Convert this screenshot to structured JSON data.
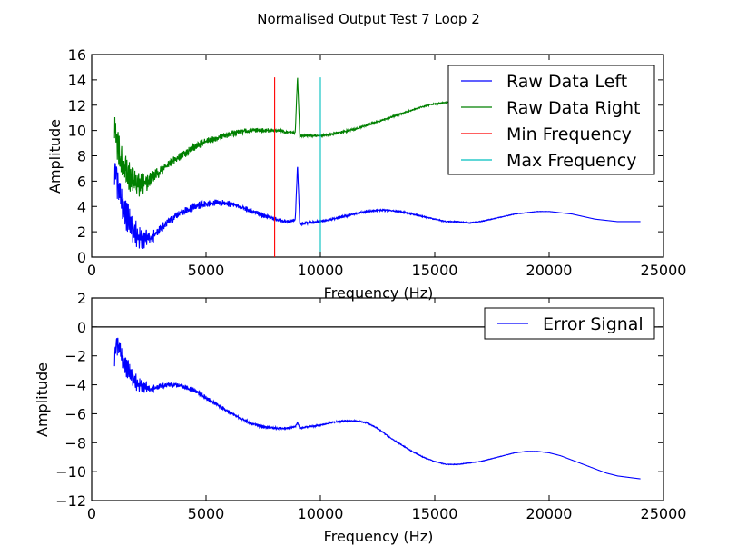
{
  "figure_title": "Normalised Output Test 7 Loop 2",
  "chart_data": [
    {
      "type": "line",
      "xlabel": "Frequency (Hz)",
      "ylabel": "Amplitude",
      "xlim": [
        0,
        25000
      ],
      "ylim": [
        0,
        16
      ],
      "xticks": [
        "0",
        "5000",
        "10000",
        "15000",
        "20000",
        "25000"
      ],
      "yticks": [
        "0",
        "2",
        "4",
        "6",
        "8",
        "10",
        "12",
        "14",
        "16"
      ],
      "legend_position": "top-right",
      "series": [
        {
          "name": "Raw Data Left",
          "color": "#0000ff",
          "style": "noisy",
          "x": [
            1000,
            1100,
            1200,
            1400,
            1600,
            1800,
            2000,
            2200,
            2600,
            3000,
            3500,
            4000,
            4500,
            5000,
            5500,
            6000,
            6500,
            7000,
            7500,
            8000,
            8500,
            8900,
            9000,
            9100,
            9500,
            10000,
            10500,
            11000,
            11500,
            12000,
            12500,
            13000,
            13500,
            14000,
            14500,
            15000,
            15500,
            16000,
            16500,
            17000,
            17500,
            18000,
            18500,
            19000,
            19500,
            20000,
            20500,
            21000,
            21500,
            22000,
            22500,
            23000,
            23500,
            24000
          ],
          "y": [
            7.0,
            6.5,
            5.0,
            3.8,
            3.0,
            2.2,
            1.6,
            1.3,
            1.6,
            2.2,
            3.0,
            3.6,
            4.0,
            4.2,
            4.3,
            4.2,
            4.0,
            3.6,
            3.3,
            3.0,
            2.8,
            2.9,
            7.3,
            2.6,
            2.7,
            2.8,
            3.0,
            3.2,
            3.4,
            3.6,
            3.7,
            3.7,
            3.6,
            3.4,
            3.2,
            3.0,
            2.8,
            2.8,
            2.7,
            2.8,
            3.0,
            3.2,
            3.4,
            3.5,
            3.6,
            3.6,
            3.5,
            3.4,
            3.2,
            3.0,
            2.9,
            2.8,
            2.8,
            2.8
          ]
        },
        {
          "name": "Raw Data Right",
          "color": "#008000",
          "style": "noisy",
          "x": [
            1000,
            1100,
            1200,
            1400,
            1600,
            1800,
            2000,
            2200,
            2600,
            3000,
            3500,
            4000,
            4500,
            5000,
            5500,
            6000,
            6500,
            7000,
            7500,
            8000,
            8500,
            8900,
            9000,
            9100,
            9500,
            10000,
            10500,
            11000,
            11500,
            12000,
            12500,
            13000,
            13500,
            14000,
            14500,
            15000,
            15500,
            16000
          ],
          "y": [
            10.5,
            9.5,
            8.5,
            7.3,
            6.5,
            6.0,
            5.8,
            5.8,
            6.2,
            6.8,
            7.5,
            8.1,
            8.7,
            9.1,
            9.4,
            9.7,
            9.9,
            10.0,
            10.0,
            10.0,
            9.9,
            9.8,
            14.3,
            9.6,
            9.6,
            9.6,
            9.7,
            9.9,
            10.1,
            10.4,
            10.7,
            11.0,
            11.3,
            11.6,
            11.9,
            12.1,
            12.2,
            12.3
          ]
        },
        {
          "name": "Min Frequency",
          "color": "#ff0000",
          "style": "vline",
          "x": [
            8000,
            8000
          ],
          "y": [
            0,
            14.2
          ]
        },
        {
          "name": "Max Frequency",
          "color": "#00bfbf",
          "style": "vline",
          "x": [
            10000,
            10000
          ],
          "y": [
            0,
            14.2
          ]
        }
      ]
    },
    {
      "type": "line",
      "xlabel": "Frequency (Hz)",
      "ylabel": "Amplitude",
      "xlim": [
        0,
        25000
      ],
      "ylim": [
        -12,
        2
      ],
      "xticks": [
        "0",
        "5000",
        "10000",
        "15000",
        "20000",
        "25000"
      ],
      "yticks": [
        "2",
        "0",
        "−2",
        "−4",
        "−6",
        "−8",
        "−10",
        "−12"
      ],
      "legend_position": "top-right",
      "reference_line_y": 0,
      "series": [
        {
          "name": "Error Signal",
          "color": "#0000ff",
          "style": "noisy",
          "x": [
            1000,
            1100,
            1200,
            1400,
            1600,
            1800,
            2000,
            2500,
            3000,
            3500,
            4000,
            4500,
            5000,
            5500,
            6000,
            6500,
            7000,
            7500,
            8000,
            8500,
            8900,
            9000,
            9100,
            9500,
            10000,
            10500,
            11000,
            11500,
            12000,
            12500,
            13000,
            13500,
            14000,
            14500,
            15000,
            15500,
            16000,
            16500,
            17000,
            17500,
            18000,
            18500,
            19000,
            19500,
            20000,
            20500,
            21000,
            21500,
            22000,
            22500,
            23000,
            23500,
            24000
          ],
          "y": [
            -2.0,
            -1.0,
            -1.5,
            -2.5,
            -3.0,
            -3.5,
            -4.0,
            -4.3,
            -4.1,
            -4.0,
            -4.1,
            -4.4,
            -4.9,
            -5.4,
            -5.9,
            -6.3,
            -6.7,
            -6.9,
            -7.0,
            -7.0,
            -6.9,
            -6.6,
            -7.0,
            -6.9,
            -6.8,
            -6.6,
            -6.5,
            -6.5,
            -6.6,
            -7.0,
            -7.6,
            -8.1,
            -8.6,
            -9.0,
            -9.3,
            -9.5,
            -9.5,
            -9.4,
            -9.3,
            -9.1,
            -8.9,
            -8.7,
            -8.6,
            -8.6,
            -8.7,
            -8.9,
            -9.2,
            -9.5,
            -9.8,
            -10.1,
            -10.3,
            -10.4,
            -10.5
          ]
        }
      ]
    }
  ]
}
